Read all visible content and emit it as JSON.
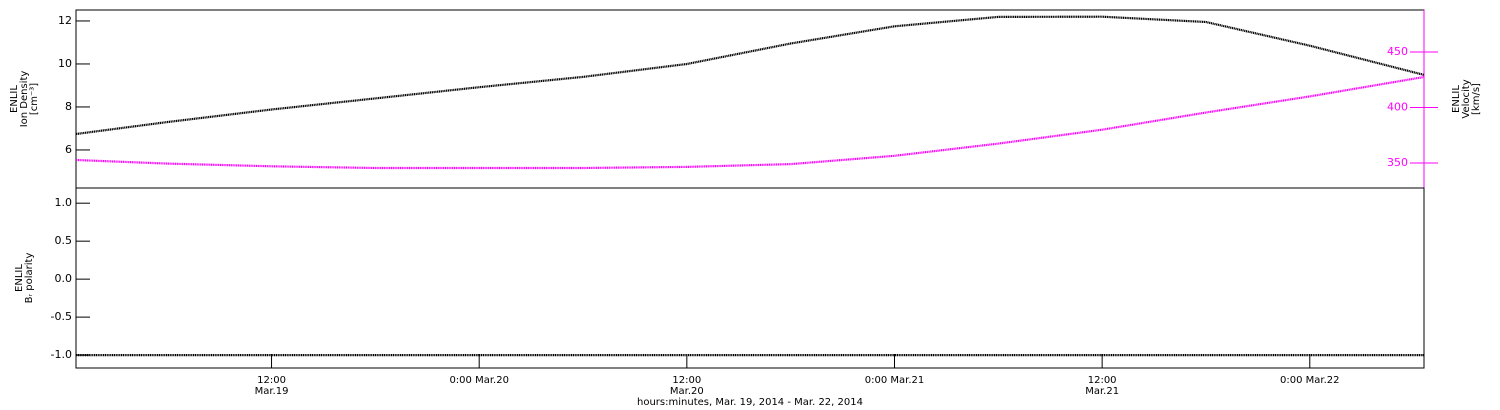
{
  "chart_data": [
    {
      "type": "line",
      "ylabel": [
        "ENLIL",
        "Ion Density",
        "[cm⁻³]"
      ],
      "y2label": [
        "ENLIL",
        "Velocity",
        "[km/s]"
      ],
      "x": [
        0.7,
        6,
        12,
        18,
        24,
        30,
        36,
        42,
        48,
        54,
        60,
        66,
        72,
        78.6
      ],
      "xlim": [
        0.7,
        78.6
      ],
      "ylim": [
        4.23,
        12.51
      ],
      "yticks": [
        6,
        8,
        10,
        12
      ],
      "y2lim": [
        327.5,
        487.8
      ],
      "y2ticks": [
        350,
        400,
        450
      ],
      "y2color": "#ff00ff",
      "series": [
        {
          "color": "#000000",
          "values": [
            6.74,
            7.3,
            7.88,
            8.4,
            8.92,
            9.4,
            10.0,
            10.95,
            11.75,
            12.19,
            12.2,
            11.95,
            10.85,
            9.49
          ]
        },
        {
          "color": "#ff00ff",
          "axis": "y2",
          "values": [
            352.7,
            349.5,
            347,
            345.5,
            345.5,
            345.5,
            346.5,
            349,
            356.5,
            367.5,
            380,
            395.5,
            410,
            427.5
          ]
        }
      ]
    },
    {
      "type": "line",
      "ylabel": [
        "ENLIL",
        "Bᵣ polarity"
      ],
      "xlabel": "hours:minutes, Mar. 19, 2014 - Mar. 22, 2014",
      "x": [
        0.7,
        6,
        12,
        18,
        24,
        30,
        36,
        42,
        48,
        54,
        60,
        66,
        72,
        78.6
      ],
      "xlim": [
        0.7,
        78.6
      ],
      "xticks": [
        {
          "value": 12,
          "label": "12:00 Mar.19"
        },
        {
          "value": 24,
          "label": "0:00 Mar.20"
        },
        {
          "value": 36,
          "label": "12:00 Mar.20"
        },
        {
          "value": 48,
          "label": "0:00 Mar.21"
        },
        {
          "value": 60,
          "label": "12:00 Mar.21"
        },
        {
          "value": 72,
          "label": "0:00 Mar.22"
        }
      ],
      "ylim": [
        -1.17,
        1.2
      ],
      "yticks": [
        {
          "value": -1,
          "label": "-1.0"
        },
        {
          "value": -0.5,
          "label": "-0.5"
        },
        {
          "value": 0,
          "label": "0.0"
        },
        {
          "value": 0.5,
          "label": "0.5"
        },
        {
          "value": 1,
          "label": "1.0"
        }
      ],
      "series": [
        {
          "color": "#000000",
          "values": [
            -1,
            -1,
            -1,
            -1,
            -1,
            -1,
            -1,
            -1,
            -1,
            -1,
            -1,
            -1,
            -1,
            -1
          ]
        }
      ]
    }
  ]
}
